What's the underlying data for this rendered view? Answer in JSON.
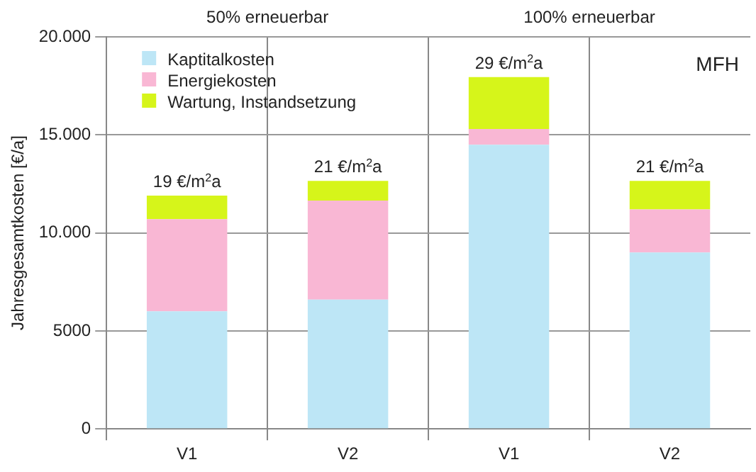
{
  "chart_data": {
    "type": "bar",
    "stacked": true,
    "ylabel": "Jahresgesamtkosten [€/a]",
    "categories": [
      "V1",
      "V2",
      "V1",
      "V2"
    ],
    "series": [
      {
        "name": "Kaptitalkosten",
        "color": "#bde6f6",
        "values": [
          6000,
          6600,
          14500,
          9000
        ]
      },
      {
        "name": "Energiekosten",
        "color": "#f9b7d4",
        "values": [
          4700,
          5050,
          800,
          2200
        ]
      },
      {
        "name": "Wartung, Instandsetzung",
        "color": "#d6f51a",
        "values": [
          1200,
          1000,
          2650,
          1450
        ]
      }
    ],
    "totals": [
      "19 €/m$^{2}$a",
      "21 €/m$^{2}$a",
      "29 €/m$^{2}$a",
      "21 €/m$^{2}$a"
    ],
    "ylim": [
      0,
      20000
    ],
    "yticks": [
      0,
      {
        "value": 5000,
        "label": "5000"
      },
      {
        "value": 10000,
        "label": "10.000"
      },
      {
        "value": 15000,
        "label": "15.000"
      },
      {
        "value": 20000,
        "label": "20.000"
      }
    ],
    "grid": "y",
    "legend": "top left",
    "annotations": [
      "50% erneuerbar",
      "100% erneuerbar",
      "MFH"
    ]
  }
}
